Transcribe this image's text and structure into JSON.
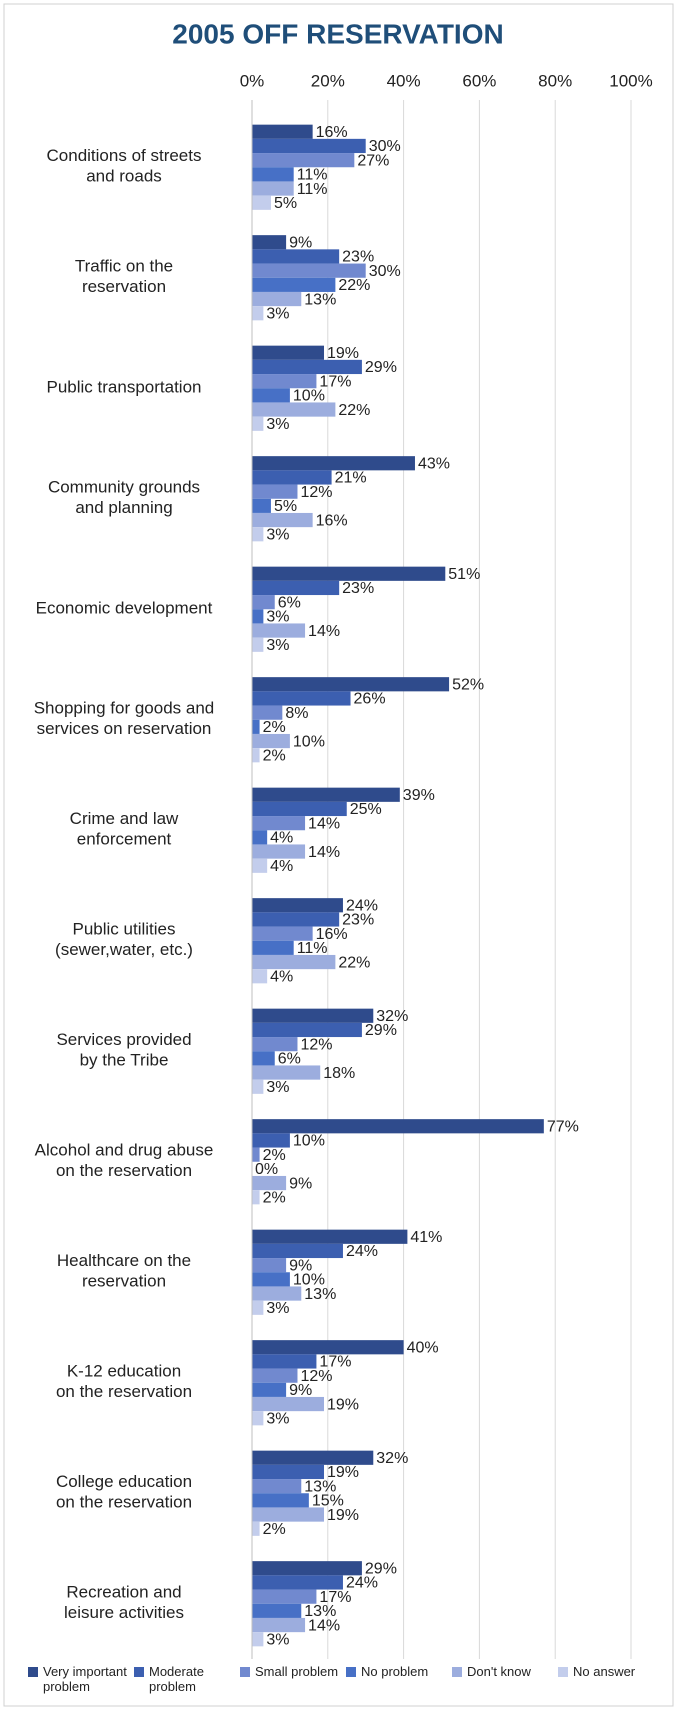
{
  "chart_data": {
    "type": "hbar",
    "title": "2005 OFF RESERVATION",
    "categories": [
      "Conditions of streets\nand roads",
      "Traffic on the\nreservation",
      "Public transportation",
      "Community grounds\nand planning",
      "Economic development",
      "Shopping for goods and\nservices on reservation",
      "Crime and law\nenforcement",
      "Public utilities\n(sewer,water, etc.)",
      "Services provided\nby the Tribe",
      "Alcohol and drug abuse\non the reservation",
      "Healthcare on the\nreservation",
      "K-12 education\non the reservation",
      "College education\non the reservation",
      "Recreation and\nleisure activities"
    ],
    "series": [
      {
        "name": "Very important problem",
        "color": "#2f4b8c",
        "values": [
          16,
          9,
          19,
          43,
          51,
          52,
          39,
          24,
          32,
          77,
          41,
          40,
          32,
          29
        ],
        "value_labels": [
          "16%",
          "9%",
          "19%",
          "43%",
          "51%",
          "52%",
          "39%",
          "24%",
          "32%",
          "77%",
          "41%",
          "40%",
          "32%",
          "29%"
        ]
      },
      {
        "name": "Moderate problem",
        "color": "#3c5fb0",
        "values": [
          30,
          23,
          29,
          21,
          23,
          26,
          25,
          23,
          29,
          10,
          24,
          17,
          19,
          24
        ],
        "value_labels": [
          "30%",
          "23%",
          "29%",
          "21%",
          "23%",
          "26%",
          "25%",
          "23%",
          "29%",
          "10%",
          "24%",
          "17%",
          "19%",
          "24%"
        ]
      },
      {
        "name": "Small problem",
        "color": "#7189cf",
        "values": [
          27,
          30,
          17,
          12,
          6,
          8,
          14,
          16,
          12,
          2,
          9,
          12,
          13,
          17
        ],
        "value_labels": [
          "27%",
          "30%",
          "17%",
          "12%",
          "6%",
          "8%",
          "14%",
          "16%",
          "12%",
          "2%",
          "9%",
          "12%",
          "13%",
          "17%"
        ]
      },
      {
        "name": "No problem",
        "color": "#4770c6",
        "values": [
          11,
          22,
          10,
          5,
          3,
          2,
          4,
          11,
          6,
          0,
          10,
          9,
          15,
          13
        ],
        "value_labels": [
          "11%",
          "22%",
          "10%",
          "5%",
          "3%",
          "2%",
          "4%",
          "11%",
          "6%",
          "0%",
          "10%",
          "9%",
          "15%",
          "13%"
        ]
      },
      {
        "name": "Don't know",
        "color": "#9cadde",
        "values": [
          11,
          13,
          22,
          16,
          14,
          10,
          14,
          22,
          18,
          9,
          13,
          19,
          19,
          14
        ],
        "value_labels": [
          "11%",
          "13%",
          "22%",
          "16%",
          "14%",
          "10%",
          "14%",
          "22%",
          "18%",
          "9%",
          "13%",
          "19%",
          "19%",
          "14%"
        ]
      },
      {
        "name": "No answer",
        "color": "#c3cdec",
        "values": [
          5,
          3,
          3,
          3,
          3,
          2,
          4,
          4,
          3,
          2,
          3,
          3,
          2,
          3
        ],
        "value_labels": [
          "5%",
          "3%",
          "3%",
          "3%",
          "3%",
          "2%",
          "4%",
          "4%",
          "3%",
          "2%",
          "3%",
          "3%",
          "2%",
          "3%"
        ]
      }
    ],
    "xlim": [
      0,
      100
    ],
    "xticks": [
      {
        "value": 0,
        "label": "0%"
      },
      {
        "value": 20,
        "label": "20%"
      },
      {
        "value": 40,
        "label": "40%"
      },
      {
        "value": 60,
        "label": "60%"
      },
      {
        "value": 80,
        "label": "80%"
      },
      {
        "value": 100,
        "label": "100%"
      }
    ],
    "grid": true,
    "legend": "bottom"
  }
}
